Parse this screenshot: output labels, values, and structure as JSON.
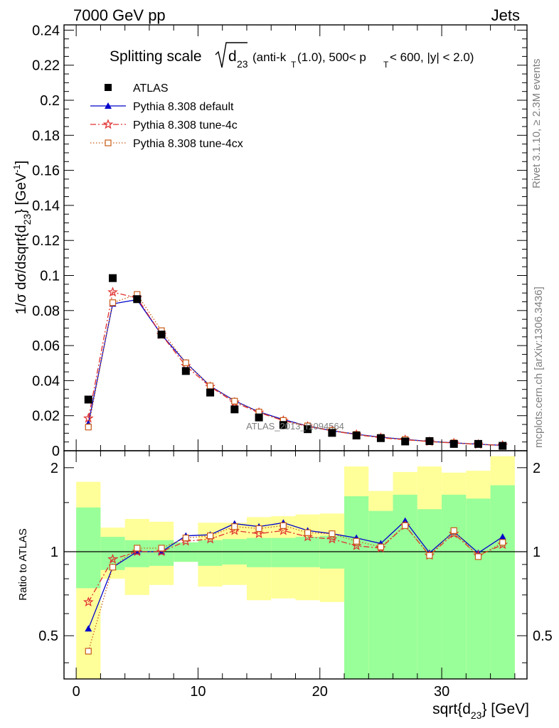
{
  "header": {
    "left": "7000 GeV pp",
    "right": "Jets"
  },
  "title": {
    "prefix": "Splitting scale",
    "var": "d",
    "var_sub": "23",
    "cuts": "(anti-k",
    "cuts_sub": "T",
    "cuts_rest": "(1.0), 500< p",
    "cuts_sub2": "T",
    "cuts_end": " < 600, |y| < 2.0)"
  },
  "side_labels": {
    "rivet": "Rivet 3.1.10, ≥ 2.3M events",
    "mcplots": "mcplots.cern.ch [arXiv:1306.3436]"
  },
  "watermark": "ATLAS_2013_I1094564",
  "chart_data": [
    {
      "type": "scatter",
      "panel": "main",
      "ylabel": "1/σ dσ/dsqrt{d",
      "ylabel_sub": "23",
      "ylabel_end": "} [GeV",
      "ylabel_sup": "-1",
      "ylabel_close": "]",
      "xlim": [
        -1,
        37
      ],
      "ylim": [
        0,
        0.243
      ],
      "y_ticks": [
        0,
        0.02,
        0.04,
        0.06,
        0.08,
        0.1,
        0.12,
        0.14,
        0.16,
        0.18,
        0.2,
        0.22,
        0.24
      ],
      "y_tick_labels": [
        "0",
        "0.02",
        "0.04",
        "0.06",
        "0.08",
        "0.1",
        "0.12",
        "0.14",
        "0.16",
        "0.18",
        "0.2",
        "0.22",
        "0.24"
      ],
      "legend_position": "top-left",
      "x": [
        1,
        3,
        5,
        7,
        9,
        11,
        13,
        15,
        17,
        19,
        21,
        23,
        25,
        27,
        29,
        31,
        33,
        35
      ],
      "series": [
        {
          "name": "ATLAS",
          "style": "data",
          "color": "#000000",
          "values": [
            0.0292,
            0.0985,
            0.0865,
            0.0663,
            0.0455,
            0.0332,
            0.0236,
            0.019,
            0.0147,
            0.0123,
            0.0102,
            0.0087,
            0.0072,
            0.0053,
            0.0055,
            0.0039,
            0.0039,
            0.0028
          ]
        },
        {
          "name": "Pythia 8.308 default",
          "style": "solid",
          "marker": "triangle",
          "color": "#0000cc",
          "values": [
            0.0155,
            0.0838,
            0.0862,
            0.0662,
            0.0503,
            0.0369,
            0.0285,
            0.0222,
            0.0178,
            0.0141,
            0.0114,
            0.0094,
            0.0077,
            0.0065,
            0.0053,
            0.0045,
            0.0037,
            0.0031
          ]
        },
        {
          "name": "Pythia 8.308 tune-4c",
          "style": "dashdot",
          "marker": "star",
          "color": "#e03030",
          "values": [
            0.0185,
            0.0905,
            0.0872,
            0.0662,
            0.0484,
            0.0365,
            0.0276,
            0.0218,
            0.0172,
            0.0139,
            0.0113,
            0.0092,
            0.0074,
            0.0063,
            0.0052,
            0.0044,
            0.0036,
            0.003
          ]
        },
        {
          "name": "Pythia 8.308 tune-4cx",
          "style": "dotted",
          "marker": "open-square",
          "color": "#c85a14",
          "values": [
            0.0135,
            0.0845,
            0.0892,
            0.0685,
            0.0502,
            0.037,
            0.0283,
            0.0221,
            0.0173,
            0.0142,
            0.0116,
            0.0093,
            0.0076,
            0.0064,
            0.0052,
            0.0045,
            0.0037,
            0.003
          ]
        }
      ]
    },
    {
      "type": "scatter",
      "panel": "ratio",
      "ylabel": "Ratio to ATLAS",
      "xlabel": "sqrt{d",
      "xlabel_sub": "23",
      "xlabel_end": "} [GeV]",
      "xlim": [
        -1,
        37
      ],
      "ylim": [
        0.35,
        2.3
      ],
      "x_ticks": [
        0,
        10,
        20,
        30
      ],
      "x_tick_labels": [
        "0",
        "10",
        "20",
        "30"
      ],
      "y_ticks": [
        0.5,
        1,
        2
      ],
      "y_tick_labels": [
        "0.5",
        "1",
        "2"
      ],
      "bins": [
        [
          0,
          2
        ],
        [
          2,
          4
        ],
        [
          4,
          6
        ],
        [
          6,
          8
        ],
        [
          8,
          10
        ],
        [
          10,
          12
        ],
        [
          12,
          14
        ],
        [
          14,
          16
        ],
        [
          16,
          18
        ],
        [
          18,
          20
        ],
        [
          20,
          22
        ],
        [
          22,
          24
        ],
        [
          24,
          26
        ],
        [
          26,
          28
        ],
        [
          28,
          30
        ],
        [
          30,
          32
        ],
        [
          32,
          34
        ],
        [
          34,
          36
        ]
      ],
      "band_inner": [
        [
          0.74,
          1.44
        ],
        [
          0.86,
          1.13
        ],
        [
          0.88,
          1.1
        ],
        [
          0.89,
          1.1
        ],
        [
          0.92,
          1.08
        ],
        [
          0.89,
          1.1
        ],
        [
          0.9,
          1.11
        ],
        [
          0.88,
          1.12
        ],
        [
          0.88,
          1.12
        ],
        [
          0.88,
          1.13
        ],
        [
          0.87,
          1.14
        ],
        [
          0.35,
          1.58
        ],
        [
          0.35,
          1.4
        ],
        [
          0.35,
          1.6
        ],
        [
          0.35,
          1.42
        ],
        [
          0.35,
          1.6
        ],
        [
          0.35,
          1.55
        ],
        [
          0.35,
          1.73
        ]
      ],
      "band_outer": [
        [
          0.35,
          1.78
        ],
        [
          0.8,
          1.22
        ],
        [
          0.7,
          1.31
        ],
        [
          0.76,
          1.28
        ],
        [
          0.92,
          1.08
        ],
        [
          0.75,
          1.27
        ],
        [
          0.76,
          1.27
        ],
        [
          0.67,
          1.33
        ],
        [
          0.68,
          1.34
        ],
        [
          0.67,
          1.36
        ],
        [
          0.66,
          1.37
        ],
        [
          0.35,
          2.02
        ],
        [
          0.35,
          1.65
        ],
        [
          0.35,
          1.93
        ],
        [
          0.35,
          2.02
        ],
        [
          0.35,
          1.92
        ],
        [
          0.35,
          1.95
        ],
        [
          0.35,
          2.2
        ]
      ],
      "series": [
        {
          "name": "Pythia 8.308 default",
          "style": "solid",
          "marker": "triangle",
          "color": "#0000cc",
          "values": [
            0.53,
            0.88,
            1.0,
            1.0,
            1.14,
            1.15,
            1.26,
            1.23,
            1.27,
            1.19,
            1.16,
            1.12,
            1.07,
            1.29,
            0.99,
            1.18,
            0.99,
            1.13
          ]
        },
        {
          "name": "Pythia 8.308 tune-4c",
          "style": "dashdot",
          "marker": "star",
          "color": "#e03030",
          "values": [
            0.66,
            0.94,
            1.0,
            1.0,
            1.09,
            1.11,
            1.19,
            1.16,
            1.19,
            1.13,
            1.11,
            1.05,
            1.03,
            1.24,
            0.97,
            1.16,
            0.97,
            1.06
          ]
        },
        {
          "name": "Pythia 8.308 tune-4cx",
          "style": "dotted",
          "marker": "open-square",
          "color": "#c85a14",
          "values": [
            0.44,
            0.88,
            1.03,
            1.03,
            1.12,
            1.14,
            1.23,
            1.21,
            1.24,
            1.17,
            1.16,
            1.09,
            1.04,
            1.24,
            0.97,
            1.19,
            0.96,
            1.08
          ]
        }
      ]
    }
  ],
  "colors": {
    "band_inner": "#99ff99",
    "band_outer": "#ffff99",
    "axis": "#000000",
    "label_grey": "#7f7f7f"
  }
}
